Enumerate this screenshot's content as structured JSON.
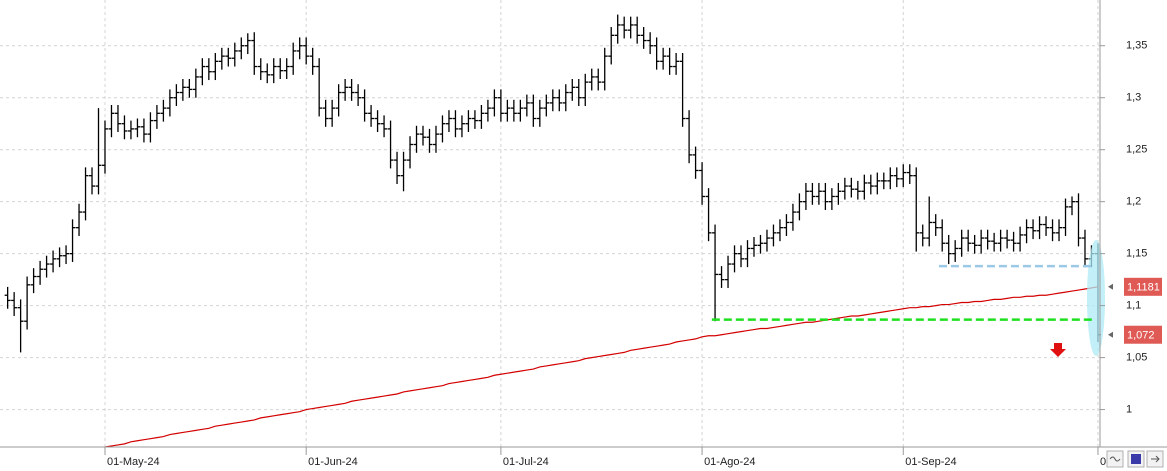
{
  "chart_data": {
    "type": "ohlc",
    "bar_color": "#000000",
    "grid": true,
    "ylim": [
      0.964,
      1.394
    ],
    "yticks": [
      1,
      {
        "value": 1.05,
        "label": "1,05"
      },
      {
        "value": 1.1,
        "label": "1,1"
      },
      {
        "value": 1.15,
        "label": "1,15"
      },
      {
        "value": 1.2,
        "label": "1,2"
      },
      {
        "value": 1.25,
        "label": "1,25"
      },
      {
        "value": 1.3,
        "label": "1,3"
      },
      {
        "value": 1.35,
        "label": "1,35"
      }
    ],
    "categories": [
      null,
      null,
      null,
      null,
      null,
      null,
      null,
      null,
      null,
      null,
      null,
      null,
      null,
      null,
      null,
      "01-May-24",
      null,
      null,
      null,
      null,
      null,
      null,
      null,
      null,
      null,
      null,
      null,
      null,
      null,
      null,
      null,
      null,
      null,
      null,
      null,
      null,
      null,
      null,
      null,
      null,
      null,
      null,
      null,
      null,
      null,
      null,
      "01-Jun-24",
      null,
      null,
      null,
      null,
      null,
      null,
      null,
      null,
      null,
      null,
      null,
      null,
      null,
      null,
      null,
      null,
      null,
      null,
      null,
      null,
      null,
      null,
      null,
      null,
      null,
      null,
      null,
      null,
      null,
      "01-Jul-24",
      null,
      null,
      null,
      null,
      null,
      null,
      null,
      null,
      null,
      null,
      null,
      null,
      null,
      null,
      null,
      null,
      null,
      null,
      null,
      null,
      null,
      null,
      null,
      null,
      null,
      null,
      null,
      null,
      null,
      null,
      "01-Ago-24",
      null,
      null,
      null,
      null,
      null,
      null,
      null,
      null,
      null,
      null,
      null,
      null,
      null,
      null,
      null,
      null,
      null,
      null,
      null,
      null,
      null,
      null,
      null,
      null,
      null,
      null,
      null,
      null,
      null,
      null,
      "01-Sep-24",
      null,
      null,
      null,
      null,
      null,
      null,
      null,
      null,
      null,
      null,
      null,
      null,
      null,
      null,
      null,
      null,
      null,
      null,
      null,
      null,
      null,
      null,
      null,
      null,
      null,
      null,
      null,
      null,
      null,
      "0"
    ],
    "open": [
      1.11,
      1.105,
      1.098,
      1.085,
      1.12,
      1.128,
      1.135,
      1.14,
      1.145,
      1.148,
      1.15,
      1.175,
      1.19,
      1.225,
      1.215,
      1.235,
      1.27,
      1.285,
      1.275,
      1.268,
      1.27,
      1.272,
      1.265,
      1.278,
      1.285,
      1.29,
      1.3,
      1.305,
      1.31,
      1.308,
      1.32,
      1.33,
      1.325,
      1.335,
      1.34,
      1.338,
      1.345,
      1.35,
      1.355,
      1.33,
      1.325,
      1.322,
      1.33,
      1.326,
      1.33,
      1.345,
      1.35,
      1.34,
      1.33,
      1.29,
      1.28,
      1.29,
      1.305,
      1.31,
      1.305,
      1.3,
      1.285,
      1.28,
      1.275,
      1.27,
      1.24,
      1.225,
      1.24,
      1.255,
      1.265,
      1.262,
      1.255,
      1.265,
      1.275,
      1.28,
      1.27,
      1.275,
      1.28,
      1.278,
      1.285,
      1.29,
      1.3,
      1.285,
      1.29,
      1.285,
      1.29,
      1.295,
      1.28,
      1.29,
      1.295,
      1.3,
      1.295,
      1.305,
      1.31,
      1.3,
      1.315,
      1.32,
      1.315,
      1.34,
      1.36,
      1.37,
      1.365,
      1.37,
      1.36,
      1.355,
      1.35,
      1.335,
      1.34,
      1.33,
      1.335,
      1.28,
      1.245,
      1.23,
      1.205,
      1.17,
      1.13,
      1.125,
      1.14,
      1.15,
      1.145,
      1.155,
      1.158,
      1.16,
      1.165,
      1.17,
      1.175,
      1.18,
      1.19,
      1.2,
      1.21,
      1.205,
      1.21,
      1.2,
      1.205,
      1.21,
      1.215,
      1.212,
      1.21,
      1.218,
      1.215,
      1.22,
      1.22,
      1.225,
      1.222,
      1.228,
      1.225,
      1.17,
      1.165,
      1.18,
      1.175,
      1.16,
      1.15,
      1.155,
      1.165,
      1.16,
      1.158,
      1.165,
      1.162,
      1.16,
      1.165,
      1.163,
      1.16,
      1.168,
      1.175,
      1.172,
      1.178,
      1.175,
      1.17,
      1.175,
      1.195,
      1.2,
      1.165,
      1.145,
      1.15
    ],
    "high": [
      1.118,
      1.113,
      1.106,
      1.128,
      1.136,
      1.143,
      1.148,
      1.153,
      1.156,
      1.158,
      1.183,
      1.198,
      1.233,
      1.233,
      1.29,
      1.278,
      1.293,
      1.293,
      1.283,
      1.278,
      1.28,
      1.28,
      1.286,
      1.293,
      1.298,
      1.308,
      1.313,
      1.318,
      1.318,
      1.328,
      1.338,
      1.338,
      1.343,
      1.348,
      1.348,
      1.353,
      1.358,
      1.362,
      1.363,
      1.338,
      1.333,
      1.338,
      1.338,
      1.338,
      1.353,
      1.358,
      1.358,
      1.348,
      1.338,
      1.298,
      1.298,
      1.313,
      1.318,
      1.318,
      1.313,
      1.308,
      1.293,
      1.288,
      1.283,
      1.278,
      1.248,
      1.248,
      1.263,
      1.273,
      1.273,
      1.27,
      1.273,
      1.283,
      1.288,
      1.288,
      1.283,
      1.288,
      1.288,
      1.293,
      1.298,
      1.308,
      1.308,
      1.298,
      1.298,
      1.298,
      1.303,
      1.303,
      1.298,
      1.303,
      1.308,
      1.308,
      1.313,
      1.318,
      1.318,
      1.323,
      1.328,
      1.328,
      1.348,
      1.368,
      1.38,
      1.378,
      1.378,
      1.378,
      1.368,
      1.363,
      1.358,
      1.348,
      1.348,
      1.343,
      1.343,
      1.288,
      1.253,
      1.238,
      1.213,
      1.178,
      1.138,
      1.148,
      1.158,
      1.158,
      1.163,
      1.166,
      1.168,
      1.173,
      1.178,
      1.183,
      1.188,
      1.198,
      1.208,
      1.218,
      1.218,
      1.218,
      1.218,
      1.213,
      1.218,
      1.223,
      1.223,
      1.22,
      1.226,
      1.226,
      1.228,
      1.228,
      1.233,
      1.233,
      1.236,
      1.236,
      1.233,
      1.178,
      1.205,
      1.188,
      1.183,
      1.168,
      1.163,
      1.173,
      1.173,
      1.168,
      1.173,
      1.173,
      1.17,
      1.173,
      1.173,
      1.171,
      1.176,
      1.183,
      1.183,
      1.186,
      1.186,
      1.183,
      1.183,
      1.203,
      1.205,
      1.208,
      1.173,
      1.158,
      1.16
    ],
    "low": [
      1.097,
      1.09,
      1.055,
      1.077,
      1.112,
      1.12,
      1.127,
      1.132,
      1.137,
      1.14,
      1.142,
      1.167,
      1.182,
      1.207,
      1.207,
      1.227,
      1.262,
      1.267,
      1.26,
      1.26,
      1.262,
      1.257,
      1.257,
      1.27,
      1.277,
      1.282,
      1.292,
      1.297,
      1.3,
      1.3,
      1.312,
      1.317,
      1.317,
      1.327,
      1.33,
      1.33,
      1.337,
      1.342,
      1.322,
      1.317,
      1.314,
      1.314,
      1.318,
      1.318,
      1.322,
      1.337,
      1.332,
      1.322,
      1.282,
      1.272,
      1.272,
      1.282,
      1.297,
      1.297,
      1.292,
      1.277,
      1.272,
      1.267,
      1.262,
      1.232,
      1.217,
      1.21,
      1.232,
      1.247,
      1.254,
      1.247,
      1.247,
      1.257,
      1.267,
      1.262,
      1.262,
      1.267,
      1.27,
      1.27,
      1.277,
      1.282,
      1.277,
      1.277,
      1.277,
      1.277,
      1.282,
      1.272,
      1.272,
      1.282,
      1.287,
      1.287,
      1.287,
      1.297,
      1.292,
      1.292,
      1.307,
      1.307,
      1.307,
      1.332,
      1.352,
      1.357,
      1.357,
      1.352,
      1.347,
      1.342,
      1.327,
      1.327,
      1.322,
      1.322,
      1.272,
      1.237,
      1.222,
      1.197,
      1.162,
      1.085,
      1.117,
      1.117,
      1.132,
      1.137,
      1.137,
      1.147,
      1.15,
      1.152,
      1.157,
      1.162,
      1.167,
      1.172,
      1.182,
      1.192,
      1.197,
      1.197,
      1.192,
      1.192,
      1.197,
      1.202,
      1.204,
      1.202,
      1.202,
      1.207,
      1.207,
      1.212,
      1.212,
      1.214,
      1.214,
      1.217,
      1.152,
      1.157,
      1.157,
      1.167,
      1.152,
      1.14,
      1.142,
      1.147,
      1.152,
      1.15,
      1.15,
      1.154,
      1.152,
      1.152,
      1.155,
      1.152,
      1.152,
      1.16,
      1.164,
      1.164,
      1.167,
      1.162,
      1.162,
      1.167,
      1.187,
      1.157,
      1.137,
      1.137,
      1.065
    ],
    "close": [
      1.105,
      1.098,
      1.085,
      1.12,
      1.128,
      1.135,
      1.14,
      1.145,
      1.148,
      1.15,
      1.175,
      1.19,
      1.225,
      1.215,
      1.235,
      1.27,
      1.285,
      1.275,
      1.268,
      1.27,
      1.272,
      1.265,
      1.278,
      1.285,
      1.29,
      1.3,
      1.305,
      1.31,
      1.308,
      1.32,
      1.33,
      1.325,
      1.335,
      1.34,
      1.338,
      1.345,
      1.35,
      1.355,
      1.33,
      1.325,
      1.322,
      1.33,
      1.326,
      1.33,
      1.345,
      1.35,
      1.34,
      1.33,
      1.29,
      1.28,
      1.29,
      1.305,
      1.31,
      1.305,
      1.3,
      1.285,
      1.28,
      1.275,
      1.27,
      1.24,
      1.225,
      1.24,
      1.255,
      1.265,
      1.262,
      1.255,
      1.265,
      1.275,
      1.28,
      1.27,
      1.275,
      1.28,
      1.278,
      1.285,
      1.29,
      1.3,
      1.285,
      1.29,
      1.285,
      1.29,
      1.295,
      1.28,
      1.29,
      1.295,
      1.3,
      1.295,
      1.305,
      1.31,
      1.3,
      1.315,
      1.32,
      1.315,
      1.34,
      1.36,
      1.37,
      1.365,
      1.37,
      1.36,
      1.355,
      1.35,
      1.335,
      1.34,
      1.33,
      1.335,
      1.28,
      1.245,
      1.23,
      1.205,
      1.17,
      1.13,
      1.125,
      1.14,
      1.15,
      1.145,
      1.155,
      1.158,
      1.16,
      1.165,
      1.17,
      1.175,
      1.18,
      1.19,
      1.2,
      1.21,
      1.205,
      1.21,
      1.2,
      1.205,
      1.21,
      1.215,
      1.212,
      1.21,
      1.218,
      1.215,
      1.22,
      1.22,
      1.225,
      1.222,
      1.228,
      1.225,
      1.17,
      1.165,
      1.18,
      1.175,
      1.16,
      1.15,
      1.155,
      1.165,
      1.16,
      1.158,
      1.165,
      1.162,
      1.16,
      1.165,
      1.163,
      1.16,
      1.168,
      1.175,
      1.172,
      1.178,
      1.175,
      1.17,
      1.175,
      1.195,
      1.2,
      1.165,
      1.145,
      1.15,
      1.072
    ],
    "moving_average": {
      "color": "#d40000",
      "values": [
        null,
        null,
        null,
        null,
        null,
        null,
        null,
        null,
        null,
        null,
        null,
        null,
        null,
        null,
        null,
        0.964,
        0.965,
        0.966,
        0.967,
        0.969,
        0.97,
        0.971,
        0.972,
        0.973,
        0.974,
        0.976,
        0.977,
        0.978,
        0.979,
        0.98,
        0.981,
        0.982,
        0.984,
        0.985,
        0.986,
        0.987,
        0.988,
        0.989,
        0.99,
        0.992,
        0.993,
        0.994,
        0.995,
        0.996,
        0.997,
        0.998,
        1,
        1.001,
        1.002,
        1.003,
        1.004,
        1.005,
        1.006,
        1.008,
        1.009,
        1.01,
        1.011,
        1.012,
        1.013,
        1.014,
        1.015,
        1.017,
        1.018,
        1.019,
        1.02,
        1.021,
        1.022,
        1.023,
        1.025,
        1.026,
        1.027,
        1.028,
        1.029,
        1.03,
        1.031,
        1.033,
        1.034,
        1.035,
        1.036,
        1.037,
        1.038,
        1.039,
        1.041,
        1.042,
        1.043,
        1.044,
        1.045,
        1.046,
        1.047,
        1.049,
        1.05,
        1.051,
        1.052,
        1.053,
        1.054,
        1.055,
        1.057,
        1.058,
        1.059,
        1.06,
        1.061,
        1.062,
        1.063,
        1.065,
        1.066,
        1.067,
        1.068,
        1.07,
        1.071,
        1.071,
        1.072,
        1.073,
        1.074,
        1.075,
        1.076,
        1.077,
        1.078,
        1.078,
        1.079,
        1.08,
        1.081,
        1.082,
        1.083,
        1.084,
        1.084,
        1.085,
        1.086,
        1.087,
        1.088,
        1.089,
        1.09,
        1.09,
        1.091,
        1.092,
        1.093,
        1.094,
        1.095,
        1.096,
        1.097,
        1.098,
        1.098,
        1.099,
        1.099,
        1.1,
        1.101,
        1.101,
        1.102,
        1.103,
        1.103,
        1.104,
        1.104,
        1.105,
        1.106,
        1.106,
        1.107,
        1.108,
        1.108,
        1.109,
        1.109,
        1.11,
        1.11,
        1.111,
        1.112,
        1.113,
        1.114,
        1.115,
        1.116,
        1.117,
        1.1181
      ]
    },
    "hlines": [
      {
        "value": 1.138,
        "color": "#9cc8e8"
      },
      {
        "value": 1.0865,
        "color": "#1ee01e"
      }
    ],
    "price_labels": [
      {
        "value": 1.1181,
        "label": "1,1181",
        "color": "#e05a55"
      },
      {
        "value": 1.072,
        "label": "1,072",
        "color": "#e05a55"
      }
    ]
  }
}
